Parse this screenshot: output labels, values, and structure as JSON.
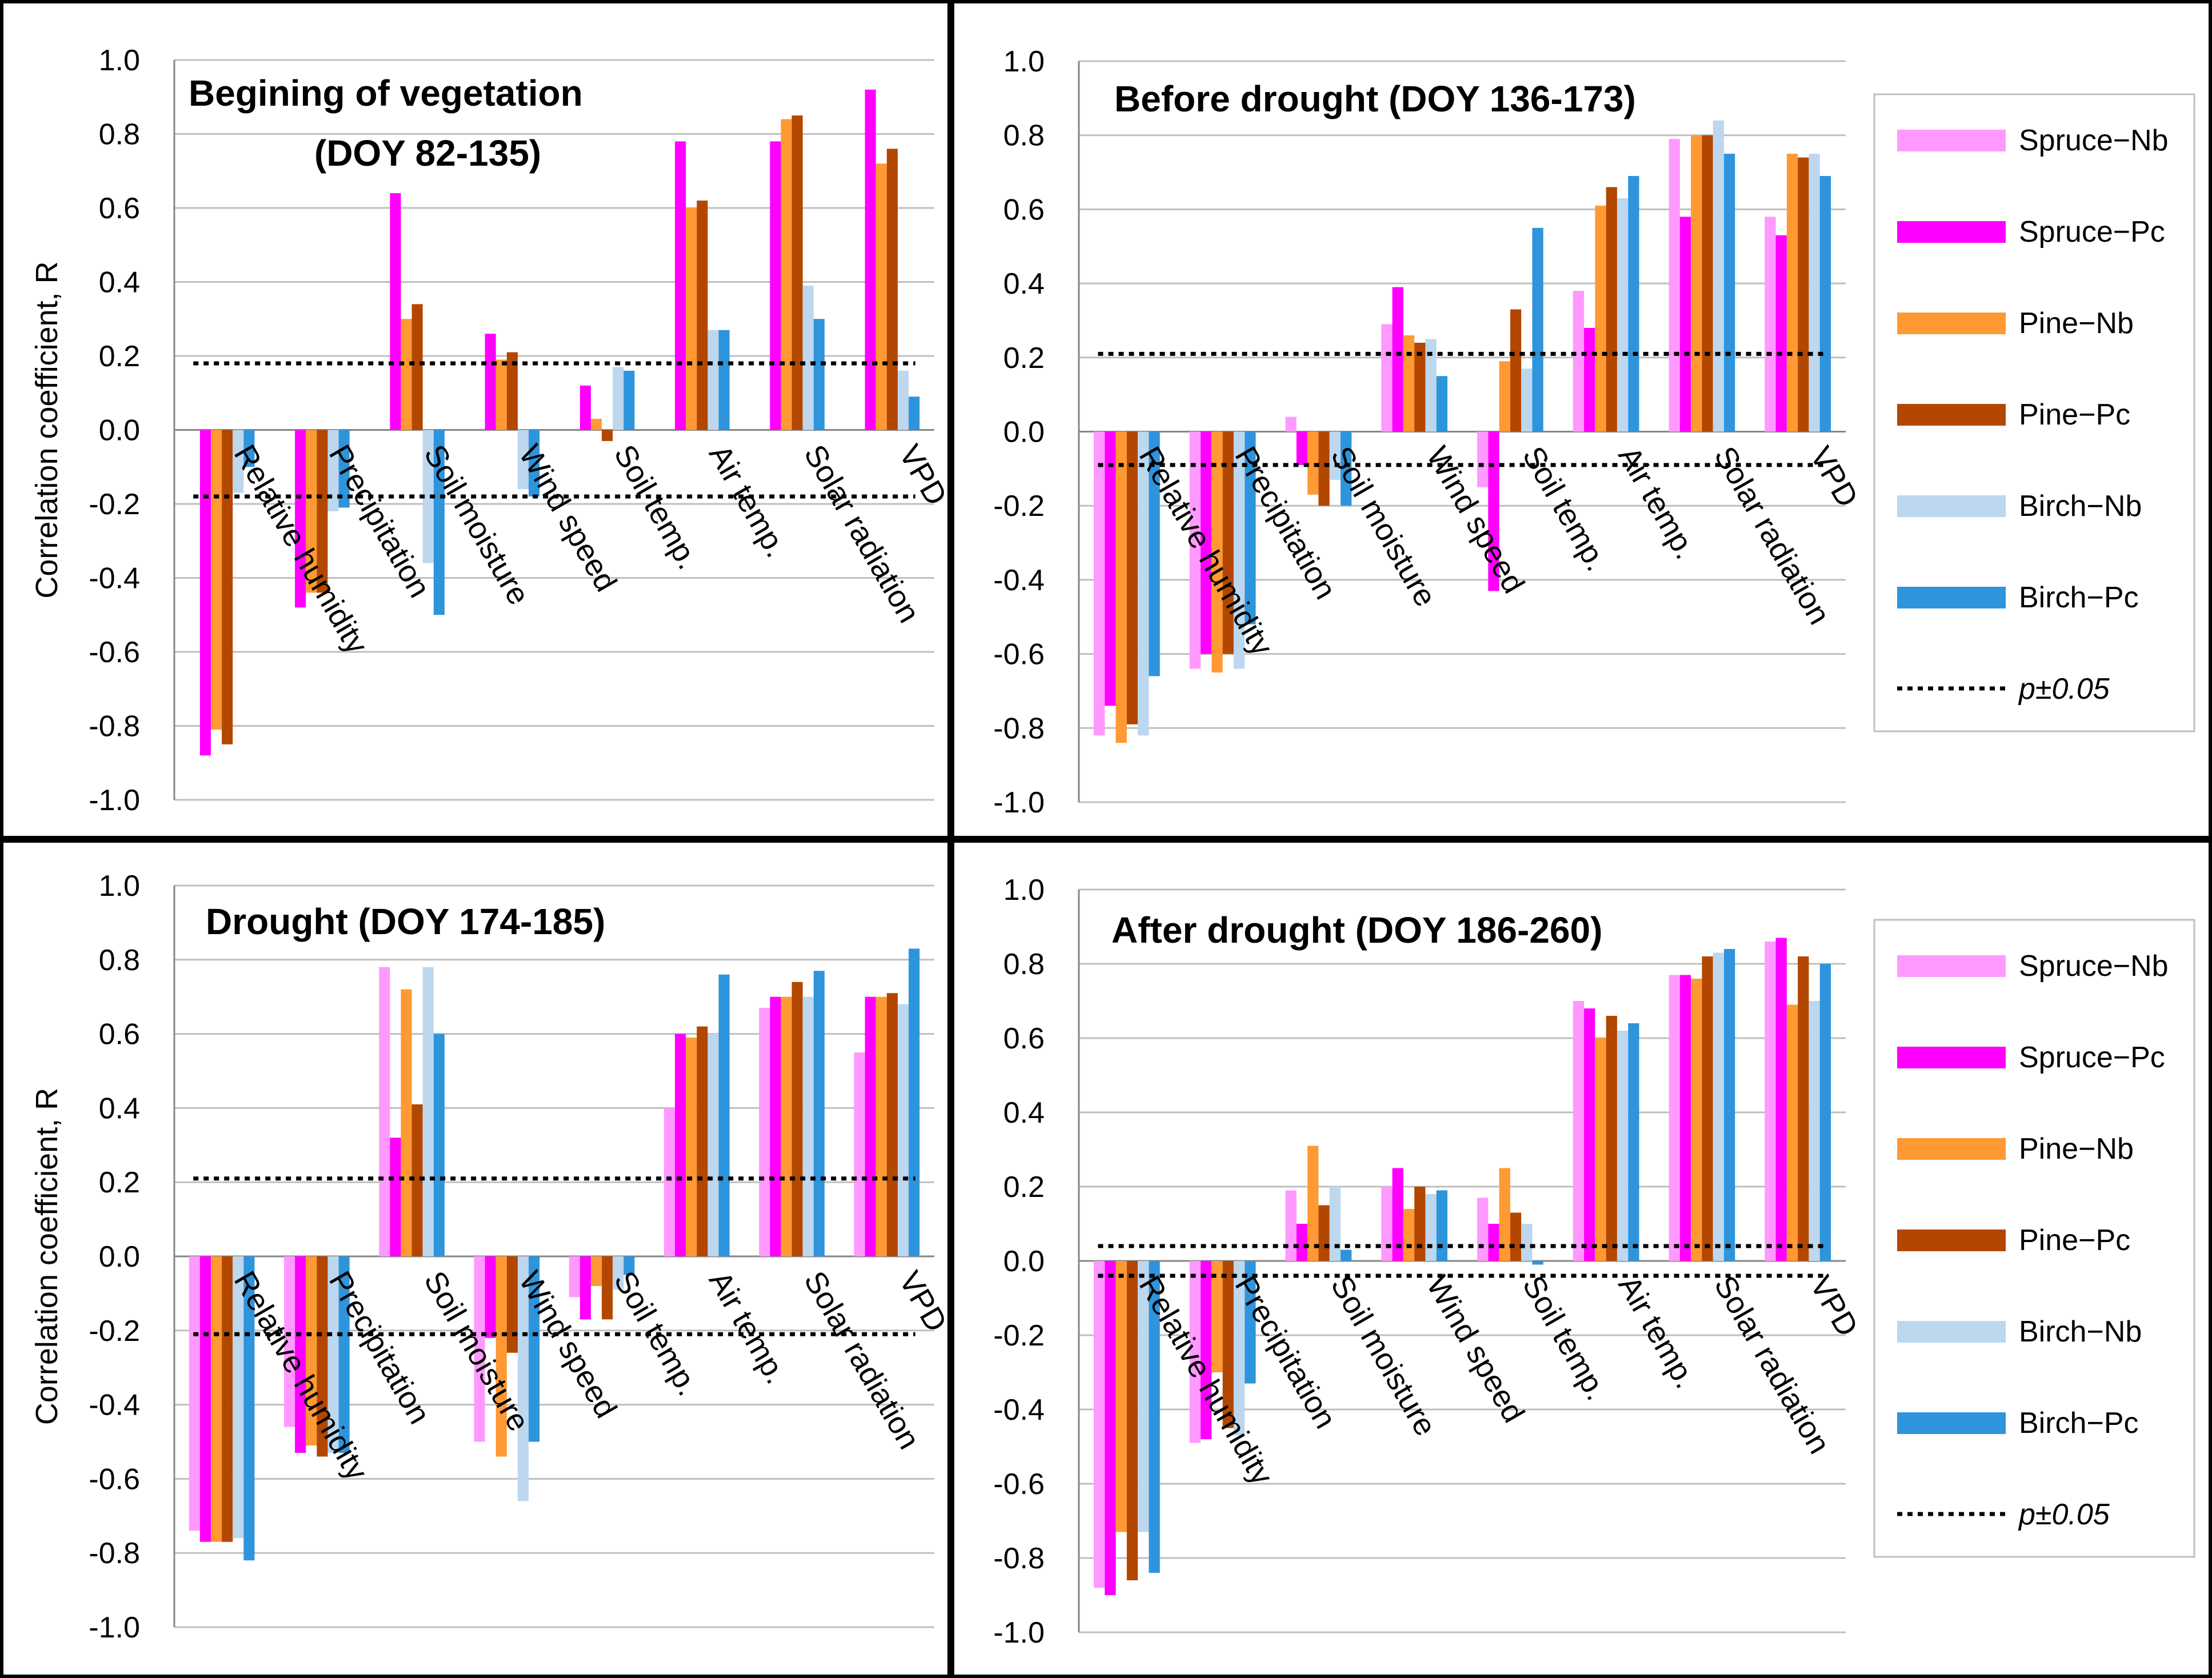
{
  "colors": {
    "Spruce-Nb": "#ff99ff",
    "Spruce-Pc": "#ff00ff",
    "Pine-Nb": "#ff9933",
    "Pine-Pc": "#b34700",
    "Birch-Nb": "#bdd7ee",
    "Birch-Pc": "#2e94dc"
  },
  "legend": {
    "items": [
      "Spruce−Nb",
      "Spruce−Pc",
      "Pine−Nb",
      "Pine−Pc",
      "Birch−Nb",
      "Birch−Pc"
    ],
    "keys": [
      "Spruce-Nb",
      "Spruce-Pc",
      "Pine-Nb",
      "Pine-Pc",
      "Birch-Nb",
      "Birch-Pc"
    ],
    "sig_label": "p±0.05"
  },
  "y_axis_title": "Correlation coefficient, R",
  "chart_data": [
    {
      "type": "bar",
      "title": [
        "Begining of vegetation",
        "(DOY 82-135)"
      ],
      "ylabel": "Correlation coefficient, R",
      "ylim": [
        -1.0,
        1.0
      ],
      "yticks": [
        "1.0",
        "0.8",
        "0.6",
        "0.4",
        "0.2",
        "0.0",
        "-0.2",
        "-0.4",
        "-0.6",
        "-0.8",
        "-1.0"
      ],
      "categories": [
        "Relative humidity",
        "Precipitation",
        "Soil moisture",
        "Wind speed",
        "Soil temp.",
        "Air temp.",
        "Solar radiation",
        "VPD"
      ],
      "series": [
        {
          "name": "Spruce-Nb",
          "values": [
            0,
            0,
            0,
            0,
            0,
            0,
            0,
            0
          ]
        },
        {
          "name": "Spruce-Pc",
          "values": [
            -0.88,
            -0.48,
            0.64,
            0.26,
            0.12,
            0.78,
            0.78,
            0.92
          ]
        },
        {
          "name": "Pine-Nb",
          "values": [
            -0.81,
            -0.44,
            0.3,
            0.19,
            0.03,
            0.6,
            0.84,
            0.72
          ]
        },
        {
          "name": "Pine-Pc",
          "values": [
            -0.85,
            -0.44,
            0.34,
            0.21,
            -0.03,
            0.62,
            0.85,
            0.76
          ]
        },
        {
          "name": "Birch-Nb",
          "values": [
            -0.17,
            -0.22,
            -0.36,
            -0.16,
            0.17,
            0.27,
            0.39,
            0.16
          ]
        },
        {
          "name": "Birch-Pc",
          "values": [
            -0.1,
            -0.21,
            -0.5,
            -0.18,
            0.16,
            0.27,
            0.3,
            0.09
          ]
        }
      ],
      "significance": [
        0.18,
        -0.18
      ],
      "legend": false
    },
    {
      "type": "bar",
      "title": [
        "Before drought (DOY 136-173)"
      ],
      "ylabel": "",
      "ylim": [
        -1.0,
        1.0
      ],
      "yticks": [
        "1.0",
        "0.8",
        "0.6",
        "0.4",
        "0.2",
        "0.0",
        "-0.2",
        "-0.4",
        "-0.6",
        "-0.8",
        "-1.0"
      ],
      "categories": [
        "Relative humidity",
        "Precipitation",
        "Soil moisture",
        "Wind speed",
        "Soil temp.",
        "Air temp.",
        "Solar radiation",
        "VPD"
      ],
      "series": [
        {
          "name": "Spruce-Nb",
          "values": [
            -0.82,
            -0.64,
            0.04,
            0.29,
            -0.15,
            0.38,
            0.79,
            0.58
          ]
        },
        {
          "name": "Spruce-Pc",
          "values": [
            -0.74,
            -0.6,
            -0.09,
            0.39,
            -0.43,
            0.28,
            0.58,
            0.53
          ]
        },
        {
          "name": "Pine-Nb",
          "values": [
            -0.84,
            -0.65,
            -0.17,
            0.26,
            0.19,
            0.61,
            0.8,
            0.75
          ]
        },
        {
          "name": "Pine-Pc",
          "values": [
            -0.79,
            -0.6,
            -0.2,
            0.24,
            0.33,
            0.66,
            0.8,
            0.74
          ]
        },
        {
          "name": "Birch-Nb",
          "values": [
            -0.82,
            -0.64,
            -0.13,
            0.25,
            0.17,
            0.63,
            0.84,
            0.75
          ]
        },
        {
          "name": "Birch-Pc",
          "values": [
            -0.66,
            -0.52,
            -0.2,
            0.15,
            0.55,
            0.69,
            0.75,
            0.69
          ]
        }
      ],
      "significance": [
        0.21,
        -0.09
      ],
      "legend": true
    },
    {
      "type": "bar",
      "title": [
        "Drought (DOY 174-185)"
      ],
      "ylabel": "Correlation coefficient, R",
      "ylim": [
        -1.0,
        1.0
      ],
      "yticks": [
        "1.0",
        "0.8",
        "0.6",
        "0.4",
        "0.2",
        "0.0",
        "-0.2",
        "-0.4",
        "-0.6",
        "-0.8",
        "-1.0"
      ],
      "categories": [
        "Relative humidity",
        "Precipitation",
        "Soil moisture",
        "Wind speed",
        "Soil temp.",
        "Air temp.",
        "Solar radiation",
        "VPD"
      ],
      "series": [
        {
          "name": "Spruce-Nb",
          "values": [
            -0.74,
            -0.46,
            0.78,
            -0.5,
            -0.11,
            0.4,
            0.67,
            0.55
          ]
        },
        {
          "name": "Spruce-Pc",
          "values": [
            -0.77,
            -0.53,
            0.32,
            -0.22,
            -0.17,
            0.6,
            0.7,
            0.7
          ]
        },
        {
          "name": "Pine-Nb",
          "values": [
            -0.77,
            -0.51,
            0.72,
            -0.54,
            -0.08,
            0.59,
            0.7,
            0.7
          ]
        },
        {
          "name": "Pine-Pc",
          "values": [
            -0.77,
            -0.54,
            0.41,
            -0.26,
            -0.17,
            0.62,
            0.74,
            0.71
          ]
        },
        {
          "name": "Birch-Nb",
          "values": [
            -0.76,
            -0.53,
            0.78,
            -0.66,
            -0.09,
            0.6,
            0.7,
            0.68
          ]
        },
        {
          "name": "Birch-Pc",
          "values": [
            -0.82,
            -0.53,
            0.6,
            -0.5,
            -0.05,
            0.76,
            0.77,
            0.83
          ]
        }
      ],
      "significance": [
        0.21,
        -0.21
      ],
      "legend": false
    },
    {
      "type": "bar",
      "title": [
        "After drought (DOY 186-260)"
      ],
      "ylabel": "",
      "ylim": [
        -1.0,
        1.0
      ],
      "yticks": [
        "1.0",
        "0.8",
        "0.6",
        "0.4",
        "0.2",
        "0.0",
        "-0.2",
        "-0.4",
        "-0.6",
        "-0.8",
        "-1.0"
      ],
      "categories": [
        "Relative humidity",
        "Precipitation",
        "Soil moisture",
        "Wind speed",
        "Soil temp.",
        "Air temp.",
        "Solar radiation",
        "VPD"
      ],
      "series": [
        {
          "name": "Spruce-Nb",
          "values": [
            -0.88,
            -0.49,
            0.19,
            0.2,
            0.17,
            0.7,
            0.77,
            0.86
          ]
        },
        {
          "name": "Spruce-Pc",
          "values": [
            -0.9,
            -0.48,
            0.1,
            0.25,
            0.1,
            0.68,
            0.77,
            0.87
          ]
        },
        {
          "name": "Pine-Nb",
          "values": [
            -0.73,
            -0.3,
            0.31,
            0.14,
            0.25,
            0.6,
            0.76,
            0.69
          ]
        },
        {
          "name": "Pine-Pc",
          "values": [
            -0.86,
            -0.45,
            0.15,
            0.2,
            0.13,
            0.66,
            0.82,
            0.82
          ]
        },
        {
          "name": "Birch-Nb",
          "values": [
            -0.73,
            -0.47,
            0.2,
            0.18,
            0.1,
            0.62,
            0.83,
            0.7
          ]
        },
        {
          "name": "Birch-Pc",
          "values": [
            -0.84,
            -0.33,
            0.03,
            0.19,
            -0.01,
            0.64,
            0.84,
            0.8
          ]
        }
      ],
      "significance": [
        0.04,
        -0.04
      ],
      "legend": true
    }
  ]
}
